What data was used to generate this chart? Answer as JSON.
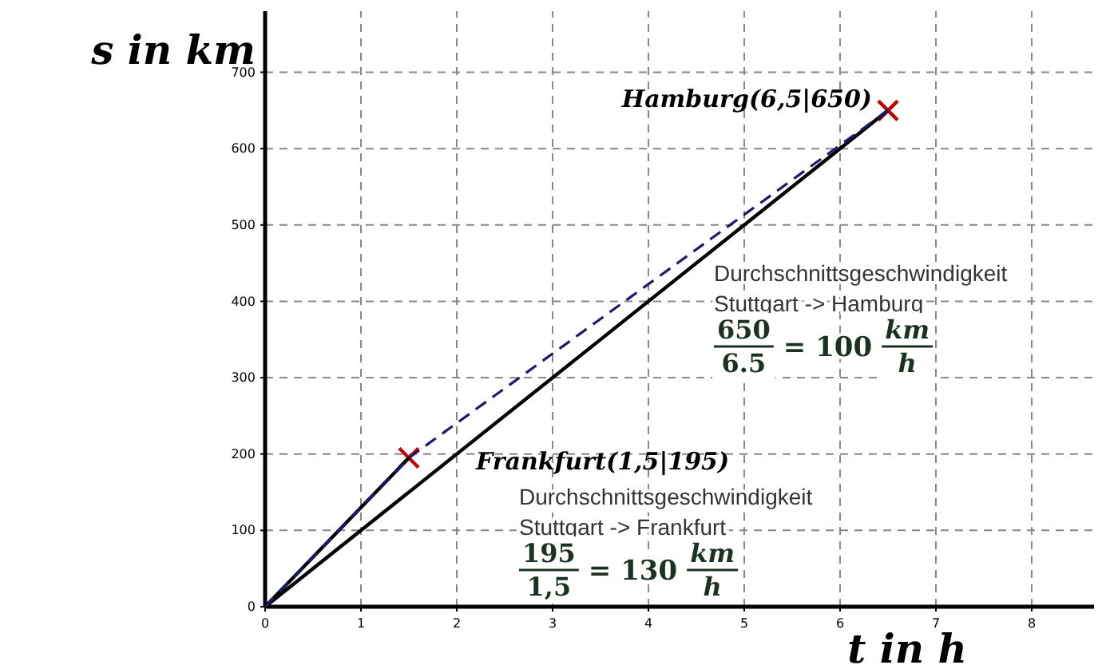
{
  "chart_data": {
    "type": "line",
    "xlabel": "t in h",
    "ylabel": "s in km",
    "xlim": [
      0,
      8.65
    ],
    "ylim": [
      0,
      780
    ],
    "xticks": [
      0,
      1,
      2,
      3,
      4,
      5,
      6,
      7,
      8
    ],
    "yticks": [
      0,
      100,
      200,
      300,
      400,
      500,
      600,
      700
    ],
    "grid": true,
    "series": [
      {
        "type": "scatter",
        "color": "#c00000",
        "marker": "cross",
        "x": [
          1.5,
          6.5
        ],
        "values": [
          195,
          650
        ]
      },
      {
        "color": "#000000",
        "line_style": "solid",
        "x": [
          0,
          1.5
        ],
        "values": [
          0,
          195
        ]
      },
      {
        "color": "#000000",
        "line_style": "solid",
        "x": [
          0,
          6.5
        ],
        "values": [
          0,
          650
        ]
      },
      {
        "color": "#1a1a6e",
        "line_style": "dashed",
        "x": [
          0,
          1.5,
          6.5
        ],
        "values": [
          0,
          195,
          650
        ]
      }
    ],
    "annotations": [
      {
        "text": "Hamburg(6,5|650)",
        "x": 6.5,
        "y": 650
      },
      {
        "text": "Frankfurt(1,5|195)",
        "x": 1.5,
        "y": 195
      },
      "Durchschnittsgeschwindigkeit",
      "Stuttgart -> Frankfurt",
      "195",
      "1,5",
      "= 130",
      "km",
      "h",
      "Durchschnittsgeschwindigkeit",
      "Stuttgart -> Hamburg",
      "650",
      "6.5",
      "= 100",
      "km",
      "h"
    ]
  }
}
